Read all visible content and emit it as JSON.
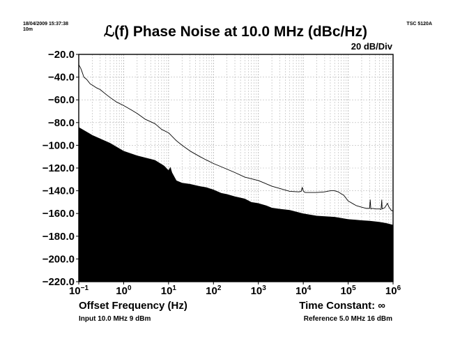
{
  "header": {
    "timestamp": "18/04/2009 15:37:38",
    "duration": "10m",
    "instrument": "TSC 5120A",
    "scale": "20 dB/Div"
  },
  "footer": {
    "input": "Input 10.0 MHz 9 dBm",
    "reference": "Reference 5.0 MHz 16 dBm",
    "time_constant": "Time Constant: ∞"
  },
  "chart_data": {
    "type": "line",
    "title": "ℒ(f) Phase Noise at 10.0 MHz (dBc/Hz)",
    "xlabel": "Offset Frequency (Hz)",
    "ylabel": "",
    "x_scale": "log",
    "xlim": [
      0.1,
      1000000
    ],
    "ylim": [
      -220,
      -20
    ],
    "x_ticks": [
      {
        "base": "10",
        "exp": "−1"
      },
      {
        "base": "10",
        "exp": "0"
      },
      {
        "base": "10",
        "exp": "1"
      },
      {
        "base": "10",
        "exp": "2"
      },
      {
        "base": "10",
        "exp": "3"
      },
      {
        "base": "10",
        "exp": "4"
      },
      {
        "base": "10",
        "exp": "5"
      },
      {
        "base": "10",
        "exp": "6"
      }
    ],
    "y_ticks": [
      "−20.0",
      "−40.0",
      "−60.0",
      "−80.0",
      "−100.0",
      "−120.0",
      "−140.0",
      "−160.0",
      "−180.0",
      "−200.0",
      "−220.0"
    ],
    "y_tick_values": [
      -20,
      -40,
      -60,
      -80,
      -100,
      -120,
      -140,
      -160,
      -180,
      -200,
      -220
    ],
    "grid": true,
    "series": [
      {
        "style": "line",
        "color": "#000000",
        "x": [
          0.1,
          0.11,
          0.12,
          0.13,
          0.15,
          0.18,
          0.2,
          0.25,
          0.3,
          0.4,
          0.5,
          0.7,
          1,
          1.5,
          2,
          3,
          5,
          7,
          10,
          15,
          20,
          30,
          50,
          70,
          100,
          200,
          300,
          500,
          1000,
          2000,
          3000,
          5000,
          8000,
          9000,
          9500,
          10000,
          10500,
          11000,
          15000,
          20000,
          30000,
          40000,
          50000,
          60000,
          80000,
          100000,
          150000,
          200000,
          250000,
          300000,
          310000,
          320000,
          350000,
          400000,
          450000,
          500000,
          540000,
          560000,
          570000,
          580000,
          600000,
          650000,
          700000,
          750000,
          800000,
          900000,
          1000000
        ],
        "y": [
          -29,
          -32,
          -36,
          -40,
          -42,
          -46,
          -47,
          -49.5,
          -51,
          -55,
          -58,
          -62,
          -65,
          -69,
          -72,
          -77,
          -81,
          -86,
          -89,
          -96,
          -100,
          -105,
          -110,
          -113,
          -116,
          -121,
          -124,
          -128,
          -131,
          -136,
          -138,
          -140.5,
          -141,
          -140.5,
          -137,
          -140,
          -141,
          -141.5,
          -141.5,
          -141.5,
          -141,
          -140,
          -140,
          -141,
          -144,
          -149,
          -153,
          -154.5,
          -155.5,
          -155.5,
          -148,
          -156,
          -155.5,
          -156,
          -156,
          -156,
          -156.5,
          -148,
          -155.5,
          -156,
          -155.5,
          -155,
          -153,
          -151,
          -154,
          -157,
          -158
        ]
      },
      {
        "style": "filled-area",
        "color": "#000000",
        "x": [
          0.1,
          0.2,
          0.5,
          1,
          2,
          5,
          8,
          10,
          11,
          12,
          15,
          20,
          30,
          50,
          70,
          100,
          150,
          200,
          300,
          500,
          700,
          1000,
          1500,
          2000,
          3000,
          5000,
          10000,
          20000,
          50000,
          100000,
          200000,
          300000,
          400000,
          500000,
          600000,
          700000,
          800000,
          900000,
          1000000
        ],
        "y": [
          -84,
          -91,
          -98,
          -105,
          -109,
          -113,
          -118,
          -122,
          -119,
          -124,
          -131,
          -133,
          -134,
          -136,
          -137,
          -139,
          -142,
          -143,
          -145,
          -147,
          -150,
          -151,
          -153,
          -155,
          -156,
          -157,
          -160,
          -162,
          -163,
          -165,
          -166,
          -166.5,
          -167,
          -167.5,
          -168,
          -168.5,
          -169,
          -169.5,
          -170
        ]
      }
    ]
  }
}
